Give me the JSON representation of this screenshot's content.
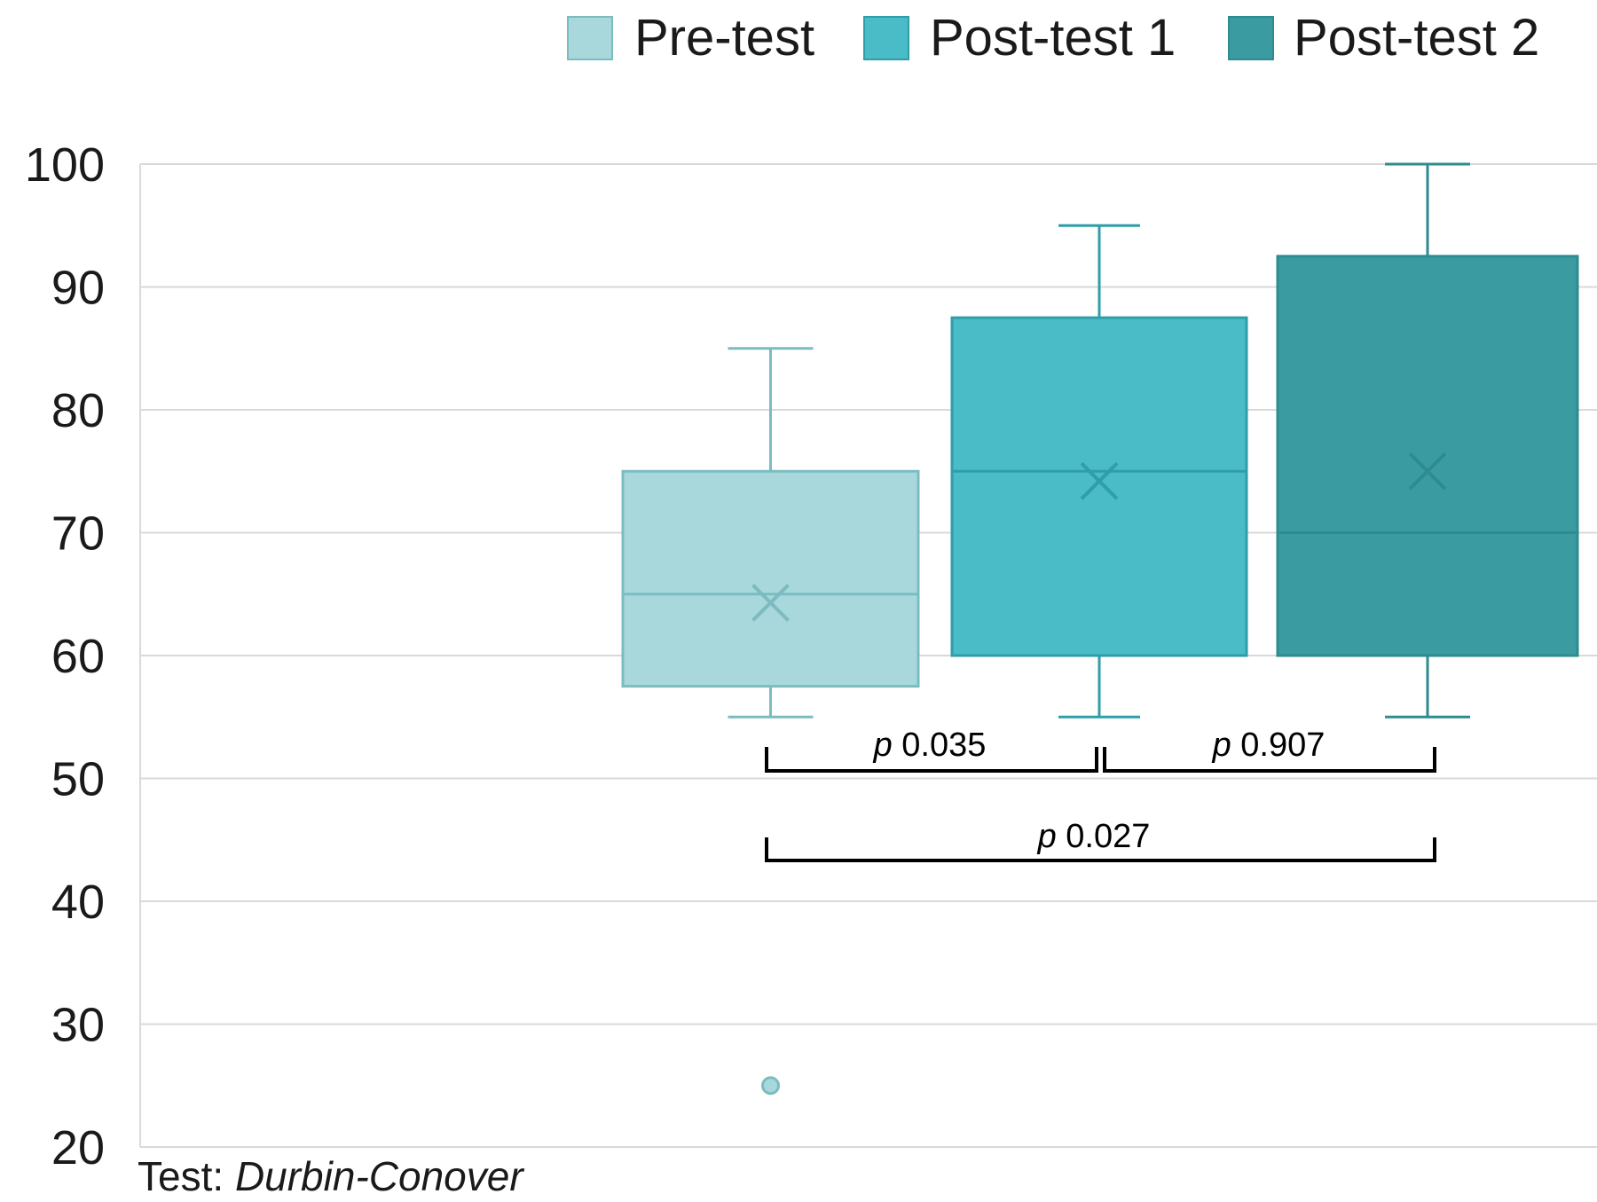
{
  "chart_data": {
    "type": "box",
    "y_axis": {
      "ticks": [
        20,
        30,
        40,
        50,
        60,
        70,
        80,
        90,
        100
      ],
      "ylim": [
        20,
        100
      ],
      "grid": true
    },
    "legend": {
      "placement": "top-right",
      "entries": [
        "Pre-test",
        "Post-test 1",
        "Post-test 2"
      ]
    },
    "series": [
      {
        "name": "Pre-test",
        "color": "#a9d8dc",
        "edge_color": "#7bbcc1",
        "min": 55,
        "q1": 57.5,
        "median": 65,
        "q3": 75,
        "max": 85,
        "mean": 64.3,
        "outliers": [
          25
        ]
      },
      {
        "name": "Post-test 1",
        "color": "#4abcc7",
        "edge_color": "#2f9ea8",
        "min": 55,
        "q1": 60,
        "median": 75,
        "q3": 87.5,
        "max": 95,
        "mean": 74.2,
        "outliers": []
      },
      {
        "name": "Post-test 2",
        "color": "#3a9ca1",
        "edge_color": "#2e8b90",
        "min": 55,
        "q1": 60,
        "median": 70,
        "q3": 92.5,
        "max": 100,
        "mean": 75,
        "outliers": []
      }
    ],
    "comparisons": [
      {
        "from": "Pre-test",
        "to": "Post-test 1",
        "p_prefix": "p",
        "p_value": "0.035",
        "row": 1
      },
      {
        "from": "Post-test 1",
        "to": "Post-test 2",
        "p_prefix": "p",
        "p_value": "0.907",
        "row": 1
      },
      {
        "from": "Pre-test",
        "to": "Post-test 2",
        "p_prefix": "p",
        "p_value": "0.027",
        "row": 2
      }
    ],
    "footnote": {
      "prefix": "Test: ",
      "method": "Durbin-Conover"
    }
  }
}
